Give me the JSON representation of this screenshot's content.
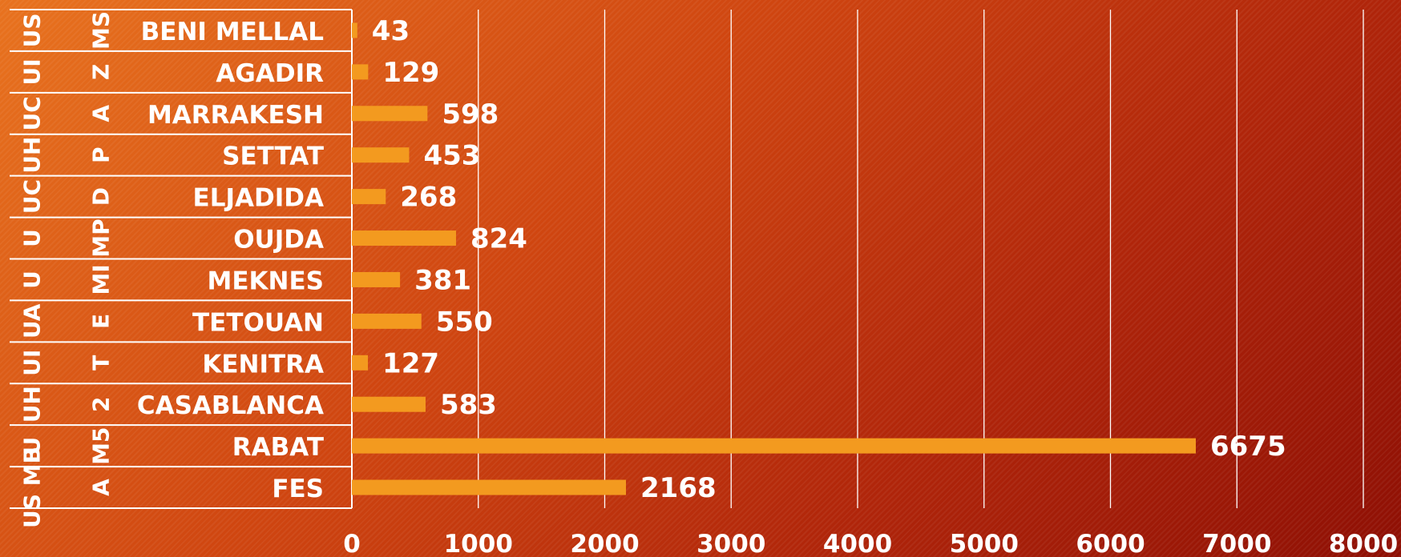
{
  "chart_data": {
    "type": "bar",
    "orientation": "horizontal",
    "categories": [
      "BENI MELLAL",
      "AGADIR",
      "MARRAKESH",
      "SETTAT",
      "ELJADIDA",
      "OUJDA",
      "MEKNES",
      "TETOUAN",
      "KENITRA",
      "CASABLANCA",
      "RABAT",
      "FES"
    ],
    "values": [
      43,
      129,
      598,
      453,
      268,
      824,
      381,
      550,
      127,
      583,
      6675,
      2168
    ],
    "group_labels": [
      [
        "US",
        "MS"
      ],
      [
        "UI",
        "Z"
      ],
      [
        "UC",
        "A"
      ],
      [
        "UH",
        "P"
      ],
      [
        "UC",
        "D"
      ],
      [
        "U",
        "MP"
      ],
      [
        "U",
        "MI"
      ],
      [
        "UA",
        "E"
      ],
      [
        "UI",
        "T"
      ],
      [
        "UH",
        "2"
      ],
      [
        "U",
        "M5"
      ],
      [
        "US MB",
        "A"
      ]
    ],
    "xlim": [
      0,
      8000
    ],
    "xticks": [
      0,
      1000,
      2000,
      3000,
      4000,
      5000,
      6000,
      7000,
      8000
    ],
    "grid": true,
    "data_labels": true,
    "colors": {
      "bar": "#f39a1f",
      "text": "#ffffff",
      "grid": "#ffffff"
    }
  }
}
